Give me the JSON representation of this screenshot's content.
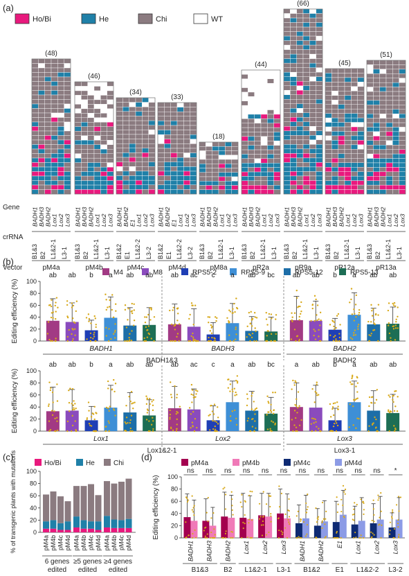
{
  "panel_labels": {
    "a": "(a)",
    "b": "(b)",
    "c": "(c)",
    "d": "(d)"
  },
  "colors": {
    "ho_bi": "#e8197d",
    "he": "#1f80a8",
    "chi": "#8b7b80",
    "wt": "#ffffff",
    "M4": "#a23a84",
    "M8": "#8a4bbd",
    "RPS5-2": "#1f3fb5",
    "RPS5-9": "#3e8fd6",
    "RPS5-12": "#1d6ea8",
    "RPS5-13": "#1d6e55",
    "pM4a": "#a3004f",
    "pM4b": "#f07ab8",
    "pM4c": "#0e2a73",
    "pM4d": "#8c9be6",
    "dots": "#d8a91a"
  },
  "legend_a": [
    {
      "key": "ho_bi",
      "label": "Ho/Bi"
    },
    {
      "key": "he",
      "label": "He"
    },
    {
      "key": "chi",
      "label": "Chi"
    },
    {
      "key": "wt",
      "label": "WT"
    }
  ],
  "row_labels": {
    "gene": "Gene",
    "crrna": "crRNA",
    "vector": "Vector"
  },
  "chart_data": [
    {
      "type": "heatmap",
      "panel": "a",
      "title": "",
      "gene_labels": [
        "BADH1",
        "BADH3",
        "BADH2",
        "Lox1",
        "Lox2",
        "Lox3"
      ],
      "vectors": [
        {
          "name": "pM4a",
          "n": "(48)",
          "crrna": [
            "B1&3",
            "B2",
            "L1&2-1",
            "L3-1"
          ],
          "genes": [
            "BADH1",
            "BADH3",
            "BADH2",
            "Lox1",
            "Lox2",
            "Lox3"
          ]
        },
        {
          "name": "pM4b",
          "n": "(46)",
          "crrna": [
            "B1&3",
            "B2",
            "L1&2-1",
            "L3-1"
          ],
          "genes": [
            "BADH1",
            "BADH3",
            "BADH2",
            "Lox1",
            "Lox2",
            "Lox3"
          ]
        },
        {
          "name": "pM4c",
          "n": "(34)",
          "crrna": [
            "B1&2",
            "E1",
            "L1&2-2",
            "L3-2"
          ],
          "genes": [
            "BADH1",
            "BADH2",
            "E1",
            "Lox1",
            "Lox2",
            "Lox3"
          ]
        },
        {
          "name": "pM4d",
          "n": "(33)",
          "crrna": [
            "B1&2",
            "E1",
            "L1&2-2",
            "L3-2"
          ],
          "genes": [
            "BADH1",
            "BADH2",
            "E1",
            "Lox1",
            "Lox2",
            "Lox3"
          ]
        },
        {
          "name": "pM8a",
          "n": "(18)",
          "crrna": [
            "B1&3",
            "B2",
            "L1&2-1",
            "L3-1"
          ],
          "genes": [
            "BADH1",
            "BADH3",
            "BADH2",
            "Lox1",
            "Lox2",
            "Lox3"
          ]
        },
        {
          "name": "pR2a",
          "n": "(44)",
          "crrna": [
            "B1&3",
            "B2",
            "L1&2-1",
            "L3-1"
          ],
          "genes": [
            "BADH1",
            "BADH3",
            "BADH2",
            "Lox1",
            "Lox2",
            "Lox3"
          ]
        },
        {
          "name": "pR9a",
          "n": "(66)",
          "crrna": [
            "B1&3",
            "B2",
            "L1&2-1",
            "L3-1"
          ],
          "genes": [
            "BADH1",
            "BADH3",
            "BADH2",
            "Lox1",
            "Lox2",
            "Lox3"
          ]
        },
        {
          "name": "pR12a",
          "n": "(45)",
          "crrna": [
            "B1&3",
            "B2",
            "L1&2-1",
            "L3-1"
          ],
          "genes": [
            "BADH1",
            "BADH3",
            "BADH2",
            "Lox1",
            "Lox2",
            "Lox3"
          ]
        },
        {
          "name": "pR13a",
          "n": "(51)",
          "crrna": [
            "B1&3",
            "B2",
            "L1&2-1",
            "L3-1"
          ],
          "genes": [
            "BADH1",
            "BADH3",
            "BADH2",
            "Lox1",
            "Lox2",
            "Lox3"
          ]
        }
      ]
    },
    {
      "type": "bar",
      "panel": "b",
      "ylabel": "Editing efficiency (%)",
      "ylim": [
        0,
        100
      ],
      "yticks": [
        0,
        20,
        40,
        60,
        80,
        100
      ],
      "series_names": [
        "M4",
        "M8",
        "RPS5-2",
        "RPS5-9",
        "RPS5-12",
        "RPS5-13"
      ],
      "rows": [
        {
          "genes": [
            {
              "gene": "BADH1",
              "values": [
                34,
                32,
                18,
                39,
                26,
                27
              ],
              "err": [
                37,
                32,
                17,
                35,
                30,
                29
              ],
              "letters": [
                "ab",
                "ab",
                "b",
                "a",
                "ab",
                "ab"
              ]
            },
            {
              "gene": "BADH3",
              "values": [
                28,
                24,
                11,
                30,
                17,
                16
              ],
              "err": [
                34,
                30,
                20,
                33,
                24,
                24
              ],
              "letters": [
                "ab",
                "ac",
                "c",
                "a",
                "ab",
                "bc"
              ]
            },
            {
              "gene": "BADH2",
              "values": [
                35,
                34,
                19,
                44,
                28,
                29
              ],
              "err": [
                40,
                33,
                19,
                37,
                27,
                28
              ],
              "letters": [
                "ab",
                "ab",
                "b",
                "a",
                "ab",
                "ab"
              ]
            }
          ],
          "groups": [
            {
              "label": "BADH1&3",
              "span": [
                0,
                1
              ]
            },
            {
              "label": "BADH2",
              "span": [
                2,
                2
              ]
            }
          ]
        },
        {
          "genes": [
            {
              "gene": "Lox1",
              "values": [
                33,
                34,
                18,
                39,
                31,
                26
              ],
              "err": [
                40,
                35,
                23,
                37,
                33,
                26
              ],
              "letters": [
                "ab",
                "ab",
                "b",
                "a",
                "ab",
                "ab"
              ]
            },
            {
              "gene": "Lox2",
              "values": [
                38,
                36,
                18,
                48,
                34,
                29
              ],
              "err": [
                36,
                34,
                24,
                35,
                32,
                27
              ],
              "letters": [
                "ab",
                "ac",
                "c",
                "a",
                "ab",
                "bc"
              ]
            },
            {
              "gene": "Lox3",
              "values": [
                40,
                39,
                18,
                48,
                34,
                30
              ],
              "err": [
                40,
                37,
                20,
                35,
                33,
                31
              ],
              "letters": [
                "a",
                "ab",
                "b",
                "a",
                "ab",
                "ab"
              ]
            }
          ],
          "groups": [
            {
              "label": "Lox1&2-1",
              "span": [
                0,
                1
              ]
            },
            {
              "label": "Lox3-1",
              "span": [
                2,
                2
              ]
            }
          ]
        }
      ]
    },
    {
      "type": "bar",
      "panel": "c",
      "ylabel": "% of transgenic plants with mutations",
      "ylim": [
        0,
        100
      ],
      "yticks": [
        0,
        20,
        40,
        60,
        80,
        100
      ],
      "legend": [
        "Ho/Bi",
        "He",
        "Chi"
      ],
      "categories": [
        "pM4a",
        "pM4b",
        "pM4c",
        "pM4d"
      ],
      "groups": [
        {
          "label": [
            "6 genes",
            "edited"
          ],
          "stacks": [
            [
              6,
              12,
              44
            ],
            [
              6,
              14,
              47
            ],
            [
              4,
              11,
              44
            ],
            [
              4,
              14,
              33
            ]
          ]
        },
        {
          "label": [
            "≥5 genes",
            "edited"
          ],
          "stacks": [
            [
              8,
              18,
              50
            ],
            [
              6,
              14,
              56
            ],
            [
              6,
              12,
              61
            ],
            [
              4,
              14,
              43
            ]
          ]
        },
        {
          "label": [
            "≥4 genes",
            "edited"
          ],
          "stacks": [
            [
              8,
              19,
              57
            ],
            [
              7,
              14,
              59
            ],
            [
              7,
              13,
              63
            ],
            [
              7,
              15,
              66
            ]
          ]
        }
      ]
    },
    {
      "type": "bar",
      "panel": "d",
      "ylabel": "Editing efficiency (%)",
      "ylim": [
        0,
        100
      ],
      "yticks": [
        0,
        20,
        40,
        60,
        80,
        100
      ],
      "legend": [
        "pM4a",
        "pM4b",
        "pM4c",
        "pM4d"
      ],
      "pairs": [
        {
          "gene": "BADH1",
          "series": [
            "pM4a",
            "pM4b"
          ],
          "values": [
            34,
            28
          ],
          "err": [
            38,
            34
          ],
          "sig": "ns"
        },
        {
          "gene": "BADH3",
          "series": [
            "pM4a",
            "pM4b"
          ],
          "values": [
            28,
            20
          ],
          "err": [
            36,
            30
          ],
          "sig": "ns"
        },
        {
          "gene": "BADH2",
          "series": [
            "pM4a",
            "pM4b"
          ],
          "values": [
            35,
            33
          ],
          "err": [
            40,
            37
          ],
          "sig": "ns"
        },
        {
          "gene": "Lox1",
          "series": [
            "pM4a",
            "pM4b"
          ],
          "values": [
            33,
            31
          ],
          "err": [
            40,
            38
          ],
          "sig": "ns"
        },
        {
          "gene": "Lox2",
          "series": [
            "pM4a",
            "pM4b"
          ],
          "values": [
            37,
            35
          ],
          "err": [
            36,
            38
          ],
          "sig": "ns"
        },
        {
          "gene": "Lox3",
          "series": [
            "pM4a",
            "pM4b"
          ],
          "values": [
            40,
            32
          ],
          "err": [
            40,
            40
          ],
          "sig": "ns"
        },
        {
          "gene": "BADH1",
          "series": [
            "pM4c",
            "pM4d"
          ],
          "values": [
            24,
            32
          ],
          "err": [
            30,
            38
          ],
          "sig": "ns"
        },
        {
          "gene": "BADH2",
          "series": [
            "pM4c",
            "pM4d"
          ],
          "values": [
            20,
            27
          ],
          "err": [
            28,
            34
          ],
          "sig": "ns"
        },
        {
          "gene": "E1",
          "series": [
            "pM4c",
            "pM4d"
          ],
          "values": [
            26,
            38
          ],
          "err": [
            34,
            40
          ],
          "sig": "ns"
        },
        {
          "gene": "Lox1",
          "series": [
            "pM4c",
            "pM4d"
          ],
          "values": [
            22,
            28
          ],
          "err": [
            30,
            38
          ],
          "sig": "ns"
        },
        {
          "gene": "Lox2",
          "series": [
            "pM4c",
            "pM4d"
          ],
          "values": [
            24,
            30
          ],
          "err": [
            32,
            38
          ],
          "sig": "ns"
        },
        {
          "gene": "Lox3",
          "series": [
            "pM4c",
            "pM4d"
          ],
          "values": [
            17,
            30
          ],
          "err": [
            24,
            36
          ],
          "sig": "*"
        }
      ],
      "crrna_groups": [
        {
          "label": "B1&3",
          "span": [
            0,
            1
          ]
        },
        {
          "label": "B2",
          "span": [
            2,
            2
          ]
        },
        {
          "label": "L1&2-1",
          "span": [
            3,
            4
          ]
        },
        {
          "label": "L3-1",
          "span": [
            5,
            5
          ]
        },
        {
          "label": "B1&2",
          "span": [
            6,
            7
          ]
        },
        {
          "label": "E1",
          "span": [
            8,
            8
          ]
        },
        {
          "label": "L1&2-2",
          "span": [
            9,
            10
          ]
        },
        {
          "label": "L3-2",
          "span": [
            11,
            11
          ]
        }
      ]
    }
  ]
}
